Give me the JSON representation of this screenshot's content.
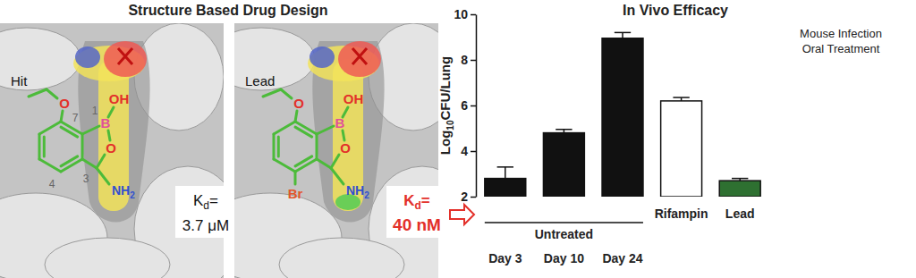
{
  "design": {
    "title": "Structure Based Drug Design",
    "panels": [
      {
        "label": "Hit",
        "atoms": {
          "ether_oxygen": "O",
          "boron": "B",
          "hydroxyl": "OH",
          "ring_oxygen": "O",
          "amine": {
            "main": "NH",
            "sub": "2"
          }
        },
        "locants": {
          "c7": 7,
          "b1": 1,
          "c4": 4,
          "c3": 3
        },
        "kd_label": {
          "main": "K",
          "sub": "d",
          "after": "="
        },
        "kd_value": "3.7 μM"
      },
      {
        "label": "Lead",
        "atoms": {
          "ether_oxygen": "O",
          "boron": "B",
          "hydroxyl": "OH",
          "ring_oxygen": "O",
          "amine": {
            "main": "NH",
            "sub": "2"
          },
          "bromine": "Br"
        },
        "kd_label": {
          "main": "K",
          "sub": "d",
          "after": "="
        },
        "kd_value": "40 nM"
      }
    ]
  },
  "chart_data": {
    "type": "bar",
    "title": "In Vivo Efficacy",
    "y_label": {
      "main": "Log",
      "sub": "10",
      "after": "CFU/Lung"
    },
    "categories": [
      "Day 3",
      "Day 10",
      "Day 24",
      "Rifampin",
      "Lead"
    ],
    "values": [
      2.8,
      4.8,
      8.95,
      6.2,
      2.7
    ],
    "errors": [
      0.5,
      0.15,
      0.25,
      0.15,
      0.1
    ],
    "colors": [
      "#111111",
      "#111111",
      "#111111",
      "#ffffff",
      "#2e7031"
    ],
    "ylim": [
      2,
      10
    ],
    "yticks": [
      2,
      4,
      6,
      8,
      10
    ],
    "annotation": [
      "Mouse Infection",
      "Oral Treatment"
    ],
    "groups": [
      {
        "label": "Untreated",
        "members": [
          "Day 3",
          "Day 10",
          "Day 24"
        ]
      }
    ]
  }
}
